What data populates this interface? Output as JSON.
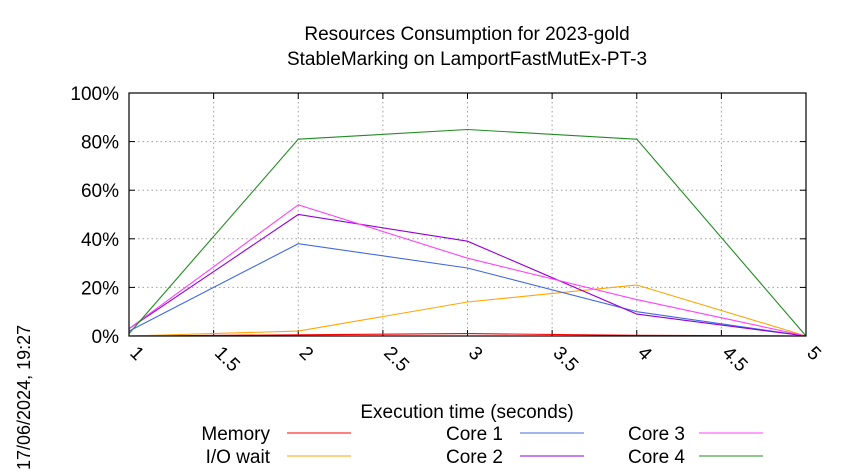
{
  "chart_data": {
    "type": "line",
    "title": "Resources Consumption for 2023-gold",
    "subtitle": "StableMarking on LamportFastMutEx-PT-3",
    "xlabel": "Execution time (seconds)",
    "ylabel": "",
    "timestamp": "17/06/2024, 19:27",
    "xlim": [
      1,
      5
    ],
    "ylim": [
      0,
      100
    ],
    "x_ticks": [
      "1",
      "1.5",
      "2",
      "2.5",
      "3",
      "3.5",
      "4",
      "4.5",
      "5"
    ],
    "y_ticks": [
      "0%",
      "20%",
      "40%",
      "60%",
      "80%",
      "100%"
    ],
    "grid": true,
    "legend_position": "bottom",
    "x": [
      1,
      2,
      3,
      4,
      5
    ],
    "series": [
      {
        "name": "Memory",
        "color": "#ff0000",
        "values": [
          0,
          0.5,
          1,
          0.3,
          0
        ]
      },
      {
        "name": "I/O wait",
        "color": "#ffa500",
        "values": [
          0,
          2,
          14,
          21,
          0
        ]
      },
      {
        "name": "Core 1",
        "color": "#4169e1",
        "values": [
          2,
          38,
          28,
          10,
          0
        ]
      },
      {
        "name": "Core 2",
        "color": "#9400d3",
        "values": [
          3,
          50,
          39,
          9,
          0
        ]
      },
      {
        "name": "Core 3",
        "color": "#ff40ff",
        "values": [
          3,
          54,
          32,
          15,
          0
        ]
      },
      {
        "name": "Core 4",
        "color": "#228b22",
        "values": [
          1,
          81,
          85,
          81,
          0
        ]
      }
    ]
  }
}
